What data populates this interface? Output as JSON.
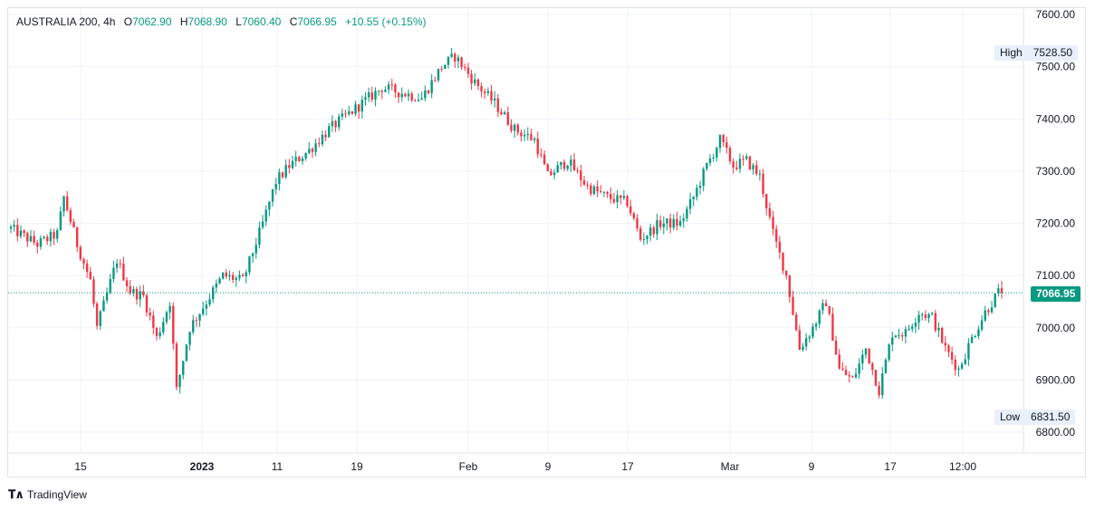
{
  "header": {
    "symbol": "AUSTRALIA 200",
    "interval": "4h",
    "open_label": "O",
    "open": "7062.90",
    "high_label": "H",
    "high": "7068.90",
    "low_label": "L",
    "low": "7060.40",
    "close_label": "C",
    "close": "7066.95",
    "change": "+10.55 (+0.15%)"
  },
  "markers": {
    "high_label": "High",
    "high_value": "7528.50",
    "low_label": "Low",
    "low_value": "6831.50",
    "last_value": "7066.95"
  },
  "brand": {
    "name": "TradingView"
  },
  "colors": {
    "up": "#089981",
    "down": "#f23645",
    "grid": "#f0f3fa",
    "last_line": "#089981"
  },
  "chart_data": {
    "type": "candlestick",
    "yaxis": {
      "ticks": [
        "6800.00",
        "6900.00",
        "7000.00",
        "7100.00",
        "7200.00",
        "7300.00",
        "7400.00",
        "7500.00",
        "7600.00"
      ],
      "ylim": [
        6775,
        7605
      ]
    },
    "xaxis": {
      "ticks": [
        "15",
        "2023",
        "11",
        "19",
        "Feb",
        "9",
        "17",
        "Mar",
        "9",
        "17",
        "12:00"
      ]
    },
    "high": 7528.5,
    "low": 6831.5,
    "last": 7066.95,
    "trend_path": [
      [
        0,
        7190
      ],
      [
        8,
        7160
      ],
      [
        14,
        7180
      ],
      [
        16,
        7250
      ],
      [
        20,
        7160
      ],
      [
        24,
        7090
      ],
      [
        26,
        7000
      ],
      [
        32,
        7130
      ],
      [
        36,
        7070
      ],
      [
        40,
        7060
      ],
      [
        44,
        6980
      ],
      [
        48,
        7050
      ],
      [
        50,
        6880
      ],
      [
        54,
        7000
      ],
      [
        58,
        7040
      ],
      [
        64,
        7100
      ],
      [
        70,
        7090
      ],
      [
        76,
        7200
      ],
      [
        80,
        7280
      ],
      [
        84,
        7310
      ],
      [
        90,
        7340
      ],
      [
        96,
        7380
      ],
      [
        104,
        7420
      ],
      [
        112,
        7460
      ],
      [
        118,
        7450
      ],
      [
        124,
        7440
      ],
      [
        130,
        7500
      ],
      [
        134,
        7520
      ],
      [
        140,
        7470
      ],
      [
        146,
        7430
      ],
      [
        152,
        7380
      ],
      [
        158,
        7360
      ],
      [
        162,
        7290
      ],
      [
        168,
        7320
      ],
      [
        174,
        7270
      ],
      [
        180,
        7250
      ],
      [
        186,
        7240
      ],
      [
        190,
        7170
      ],
      [
        196,
        7200
      ],
      [
        202,
        7200
      ],
      [
        206,
        7250
      ],
      [
        210,
        7310
      ],
      [
        214,
        7360
      ],
      [
        218,
        7310
      ],
      [
        222,
        7320
      ],
      [
        226,
        7290
      ],
      [
        230,
        7180
      ],
      [
        234,
        7100
      ],
      [
        238,
        6960
      ],
      [
        242,
        7000
      ],
      [
        246,
        7050
      ],
      [
        250,
        6920
      ],
      [
        254,
        6900
      ],
      [
        258,
        6960
      ],
      [
        262,
        6880
      ],
      [
        266,
        6990
      ],
      [
        270,
        6990
      ],
      [
        274,
        7030
      ],
      [
        278,
        7020
      ],
      [
        282,
        6960
      ],
      [
        286,
        6920
      ],
      [
        290,
        6980
      ],
      [
        294,
        7030
      ],
      [
        298,
        7066.95
      ]
    ]
  }
}
